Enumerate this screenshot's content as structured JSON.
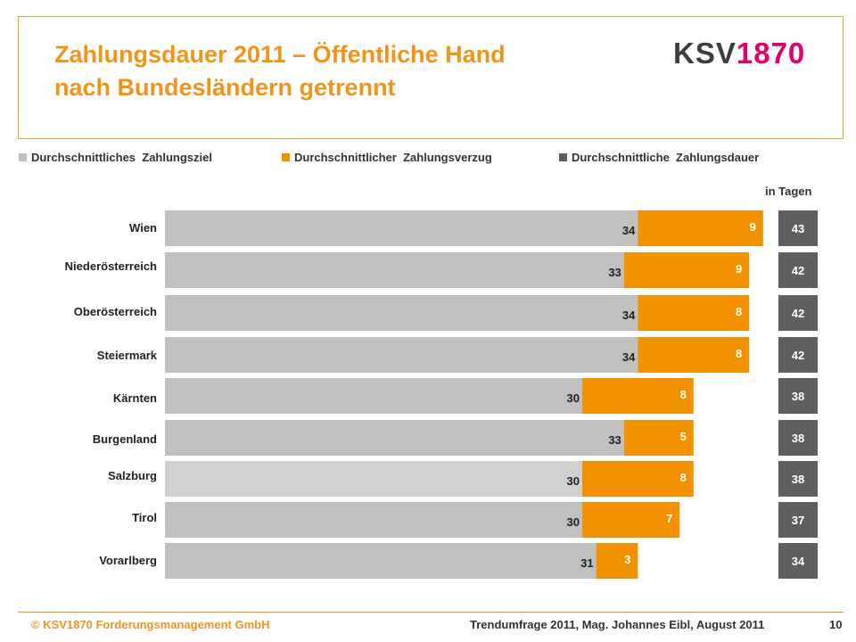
{
  "header": {
    "title_line1": "Zahlungsdauer 2011 – Öffentliche Hand",
    "title_line2": "nach Bundesländern getrennt",
    "logo_part1": "KSV",
    "logo_part2": "1870"
  },
  "footer": {
    "copyright": "© KSV1870 Forderungsmanagement GmbH",
    "source": "Trendumfrage 2011, Mag. Johannes Eibl, August 2011",
    "page": "10"
  },
  "colors": {
    "ziel": "#c0c0c0",
    "ziel_highlight": "#d0d0d0",
    "verzug": "#f39200",
    "dauer": "#5f5f5f",
    "accent": "#f0941c",
    "logo_dark": "#3d3d3d",
    "logo_pink": "#e2006a"
  },
  "chart_data": {
    "type": "bar",
    "orientation": "horizontal",
    "stacked": true,
    "unit_label": "in Tagen",
    "categories": [
      "Wien",
      "Niederösterreich",
      "Oberösterreich",
      "Steiermark",
      "Kärnten",
      "Burgenland",
      "Salzburg",
      "Tirol",
      "Vorarlberg"
    ],
    "series": [
      {
        "name": "Durchschnittliches  Zahlungsziel",
        "values": [
          34,
          33,
          34,
          34,
          30,
          33,
          30,
          30,
          31
        ]
      },
      {
        "name": "Durchschnittlicher  Zahlungsverzug",
        "values": [
          9,
          9,
          8,
          8,
          8,
          5,
          8,
          7,
          3
        ]
      },
      {
        "name": "Durchschnittliche  Zahlungsdauer",
        "values": [
          43,
          42,
          42,
          42,
          38,
          38,
          38,
          37,
          34
        ]
      }
    ],
    "highlight_category": "Salzburg",
    "grid": false,
    "legend_position": "top"
  }
}
